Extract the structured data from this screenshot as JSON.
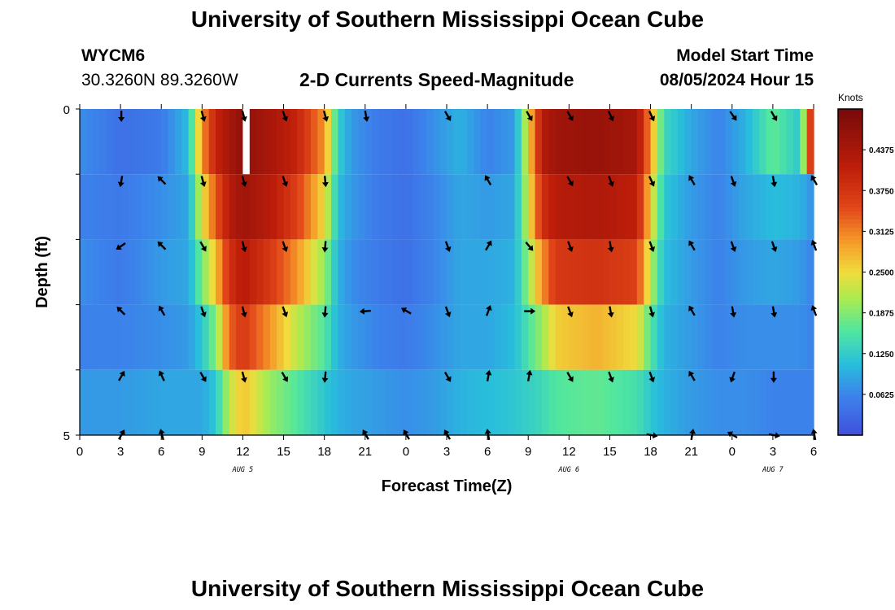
{
  "header": {
    "title": "University of Southern Mississippi Ocean Cube",
    "station": "WYCM6",
    "coords": "30.3260N  89.3260W",
    "subtitle": "2-D Currents Speed-Magnitude",
    "model_label": "Model Start Time",
    "model_time": "08/05/2024 Hour 15"
  },
  "footer": {
    "title": "University of Southern Mississippi Ocean Cube"
  },
  "chart_data": {
    "type": "heatmap",
    "title": "2-D Currents Speed-Magnitude",
    "xlabel": "Forecast Time(Z)",
    "ylabel": "Depth (ft)",
    "x_tick_labels": [
      "0",
      "3",
      "6",
      "9",
      "12",
      "15",
      "18",
      "21",
      "0",
      "3",
      "6",
      "9",
      "12",
      "15",
      "18",
      "21",
      "0",
      "3",
      "6"
    ],
    "x_hours": [
      0,
      3,
      6,
      9,
      12,
      15,
      18,
      21,
      24,
      27,
      30,
      33,
      36,
      39,
      42,
      45,
      48,
      51,
      54
    ],
    "date_labels": [
      {
        "label": "AUG 5",
        "hour": 12
      },
      {
        "label": "AUG 6",
        "hour": 36
      },
      {
        "label": "AUG 7",
        "hour": 51
      }
    ],
    "y_tick_labels": [
      "0",
      "5"
    ],
    "ylim": [
      0,
      5
    ],
    "depth_levels_ft": [
      0.5,
      1.5,
      2.5,
      3.5,
      4.5
    ],
    "colorbar": {
      "unit": "Knots",
      "ticks": [
        "0.0625",
        "0.1250",
        "0.1875",
        "0.2500",
        "0.3125",
        "0.3750",
        "0.4375"
      ],
      "range": [
        0,
        0.5
      ]
    },
    "speed_knots_by_hour": [
      {
        "hour": 0,
        "depths": [
          0.07,
          0.06,
          0.07,
          0.06,
          0.08
        ]
      },
      {
        "hour": 3,
        "depths": [
          0.04,
          0.05,
          0.05,
          0.06,
          0.08
        ]
      },
      {
        "hour": 6,
        "depths": [
          0.05,
          0.07,
          0.08,
          0.07,
          0.09
        ]
      },
      {
        "hour": 8,
        "depths": [
          0.11,
          0.09,
          0.09,
          0.08,
          0.09
        ]
      },
      {
        "hour": 9,
        "depths": [
          0.3,
          0.24,
          0.18,
          0.12,
          0.09
        ]
      },
      {
        "hour": 10,
        "depths": [
          0.4,
          0.34,
          0.27,
          0.19,
          0.12
        ]
      },
      {
        "hour": 11,
        "depths": [
          0.44,
          0.42,
          0.38,
          0.33,
          0.22
        ]
      },
      {
        "hour": 12,
        "depths": [
          0.47,
          0.45,
          0.42,
          0.37,
          0.27
        ]
      },
      {
        "hour": 14,
        "depths": [
          0.44,
          0.42,
          0.37,
          0.3,
          0.2
        ]
      },
      {
        "hour": 16,
        "depths": [
          0.4,
          0.36,
          0.3,
          0.22,
          0.16
        ]
      },
      {
        "hour": 18,
        "depths": [
          0.3,
          0.25,
          0.2,
          0.16,
          0.12
        ]
      },
      {
        "hour": 19,
        "depths": [
          0.13,
          0.11,
          0.1,
          0.1,
          0.1
        ]
      },
      {
        "hour": 20,
        "depths": [
          0.08,
          0.08,
          0.07,
          0.08,
          0.09
        ]
      },
      {
        "hour": 22,
        "depths": [
          0.05,
          0.05,
          0.05,
          0.06,
          0.08
        ]
      },
      {
        "hour": 24,
        "depths": [
          0.04,
          0.04,
          0.04,
          0.05,
          0.07
        ]
      },
      {
        "hour": 26,
        "depths": [
          0.07,
          0.06,
          0.06,
          0.07,
          0.08
        ]
      },
      {
        "hour": 28,
        "depths": [
          0.1,
          0.09,
          0.09,
          0.09,
          0.1
        ]
      },
      {
        "hour": 30,
        "depths": [
          0.06,
          0.08,
          0.09,
          0.09,
          0.11
        ]
      },
      {
        "hour": 32,
        "depths": [
          0.08,
          0.09,
          0.1,
          0.11,
          0.12
        ]
      },
      {
        "hour": 34,
        "depths": [
          0.42,
          0.38,
          0.3,
          0.2,
          0.14
        ]
      },
      {
        "hour": 35,
        "depths": [
          0.45,
          0.42,
          0.37,
          0.26,
          0.16
        ]
      },
      {
        "hour": 38,
        "depths": [
          0.46,
          0.43,
          0.38,
          0.28,
          0.17
        ]
      },
      {
        "hour": 41,
        "depths": [
          0.44,
          0.41,
          0.36,
          0.25,
          0.15
        ]
      },
      {
        "hour": 42,
        "depths": [
          0.3,
          0.26,
          0.22,
          0.16,
          0.12
        ]
      },
      {
        "hour": 43,
        "depths": [
          0.14,
          0.12,
          0.11,
          0.1,
          0.1
        ]
      },
      {
        "hour": 45,
        "depths": [
          0.09,
          0.08,
          0.08,
          0.08,
          0.08
        ]
      },
      {
        "hour": 47,
        "depths": [
          0.06,
          0.06,
          0.06,
          0.06,
          0.07
        ]
      },
      {
        "hour": 49,
        "depths": [
          0.1,
          0.09,
          0.08,
          0.07,
          0.07
        ]
      },
      {
        "hour": 51,
        "depths": [
          0.17,
          0.11,
          0.09,
          0.07,
          0.06
        ]
      },
      {
        "hour": 53,
        "depths": [
          0.12,
          0.1,
          0.08,
          0.07,
          0.06
        ]
      },
      {
        "hour": 54,
        "depths": [
          0.44,
          0.07,
          0.06,
          0.06,
          0.06
        ]
      }
    ],
    "gap_hours": [
      12,
      12.5
    ],
    "vectors": [
      {
        "hour": 3,
        "dirs": [
          180,
          190,
          235,
          315,
          30,
          30
        ]
      },
      {
        "hour": 6,
        "dirs": [
          null,
          315,
          315,
          330,
          335,
          345
        ]
      },
      {
        "hour": 9,
        "dirs": [
          165,
          165,
          150,
          160,
          150,
          null
        ]
      },
      {
        "hour": 12,
        "dirs": [
          165,
          165,
          165,
          165,
          165,
          null
        ]
      },
      {
        "hour": 15,
        "dirs": [
          160,
          160,
          160,
          160,
          150,
          null
        ]
      },
      {
        "hour": 18,
        "dirs": [
          165,
          175,
          185,
          185,
          185,
          null
        ]
      },
      {
        "hour": 21,
        "dirs": [
          170,
          null,
          null,
          265,
          null,
          330
        ]
      },
      {
        "hour": 24,
        "dirs": [
          null,
          null,
          null,
          300,
          null,
          330
        ]
      },
      {
        "hour": 27,
        "dirs": [
          150,
          null,
          160,
          160,
          150,
          330
        ]
      },
      {
        "hour": 30,
        "dirs": [
          null,
          330,
          30,
          20,
          10,
          350
        ]
      },
      {
        "hour": 33,
        "dirs": [
          150,
          null,
          140,
          90,
          10,
          null
        ]
      },
      {
        "hour": 36,
        "dirs": [
          150,
          150,
          160,
          160,
          150,
          null
        ]
      },
      {
        "hour": 39,
        "dirs": [
          155,
          160,
          170,
          170,
          160,
          null
        ]
      },
      {
        "hour": 42,
        "dirs": [
          155,
          155,
          160,
          165,
          160,
          100
        ]
      },
      {
        "hour": 45,
        "dirs": [
          null,
          330,
          330,
          330,
          330,
          10
        ]
      },
      {
        "hour": 48,
        "dirs": [
          145,
          160,
          160,
          170,
          200,
          300
        ]
      },
      {
        "hour": 51,
        "dirs": [
          150,
          170,
          160,
          170,
          180,
          100
        ]
      },
      {
        "hour": 54,
        "dirs": [
          null,
          330,
          340,
          340,
          null,
          350
        ]
      }
    ],
    "arrow_rows_depth_ft": [
      0.05,
      1.05,
      2.05,
      3.05,
      4.05,
      4.95
    ]
  }
}
